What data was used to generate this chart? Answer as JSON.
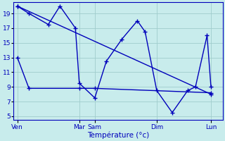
{
  "background_color": "#c8ecec",
  "grid_color": "#a0cccc",
  "line_color": "#0000bb",
  "ylim": [
    4.5,
    20.5
  ],
  "yticks": [
    5,
    7,
    9,
    11,
    13,
    15,
    17,
    19
  ],
  "xlabel": "Température (°c)",
  "xlabel_color": "#0000bb",
  "xtick_labels": [
    "Ven",
    "Mar",
    "Sam",
    "Dim",
    "Lun"
  ],
  "xtick_positions": [
    0,
    8,
    10,
    18,
    25
  ],
  "xlim": [
    -0.5,
    26.5
  ],
  "series1_x": [
    0,
    1.5,
    4,
    5.5,
    7.5,
    8,
    10,
    11.5,
    13.5,
    15.5,
    16.5,
    18,
    20,
    22,
    23,
    24.5,
    25
  ],
  "series1_y": [
    20,
    19,
    17.5,
    20,
    17,
    9.5,
    7.5,
    12.5,
    15.5,
    18,
    16.5,
    8.5,
    5.5,
    8.5,
    9,
    16,
    9
  ],
  "series2_x": [
    0,
    1.5,
    8,
    10,
    25
  ],
  "series2_y": [
    13,
    8.8,
    8.8,
    8.8,
    8.2
  ],
  "series3_x": [
    0,
    25
  ],
  "series3_y": [
    20,
    8
  ],
  "marker": "+",
  "marker_size": 4,
  "linewidth": 1.0
}
